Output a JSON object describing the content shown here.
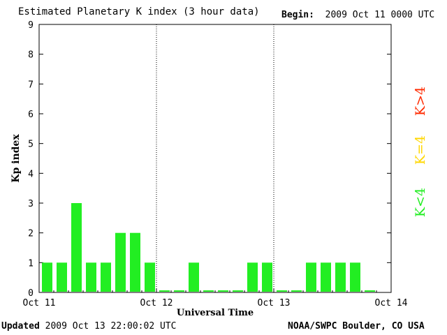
{
  "header": {
    "title": "Estimated Planetary K index (3 hour data)",
    "begin_label": "Begin:",
    "begin_value": "2009 Oct 11 0000 UTC"
  },
  "footer": {
    "updated_label": "Updated",
    "updated_value": "2009 Oct 13 22:00:02 UTC",
    "credit": "NOAA/SWPC Boulder, CO USA"
  },
  "legend": [
    {
      "label": "K>4",
      "color": "#ff2a00"
    },
    {
      "label": "K=4",
      "color": "#ffd700"
    },
    {
      "label": "K<4",
      "color": "#22ee22"
    }
  ],
  "chart_data": {
    "type": "bar",
    "title": "Estimated Planetary K index (3 hour data)",
    "xlabel": "Universal Time",
    "ylabel": "Kp index",
    "ylim": [
      0,
      9
    ],
    "yticks": [
      0,
      1,
      2,
      3,
      4,
      5,
      6,
      7,
      8,
      9
    ],
    "x_day_labels": [
      "Oct 11",
      "Oct 12",
      "Oct 13",
      "Oct 14"
    ],
    "bars_per_day": 8,
    "grid": false,
    "day_separators": "dotted",
    "bar_color": "#22ee22",
    "values": [
      1,
      1,
      3,
      1,
      1,
      2,
      2,
      1,
      0,
      0,
      1,
      0,
      0,
      0,
      1,
      1,
      0,
      0,
      1,
      1,
      1,
      1,
      0
    ]
  }
}
